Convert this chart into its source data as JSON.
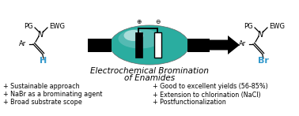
{
  "title_line1": "Electrochemical Bromination",
  "title_line2": "of Enamides",
  "bullet_left": [
    "+ Sustainable approach",
    "+ NaBr as a brominating agent",
    "+ Broad substrate scope"
  ],
  "bullet_right": [
    "+ Good to excellent yields (56-85%)",
    "+ Extension to chlorination (NaCl)",
    "+ Postfunctionalization"
  ],
  "teal_color": "#2aada0",
  "bg_color": "#ffffff",
  "text_color": "#000000",
  "blue_color": "#3399cc",
  "bullet_fontsize": 5.8,
  "title_fontsize": 7.5,
  "chem_fontsize": 6.0
}
